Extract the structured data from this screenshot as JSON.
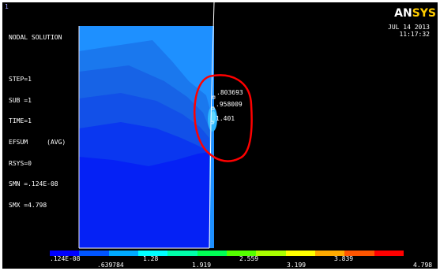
{
  "window_number": "1",
  "logo": {
    "main": "AN",
    "accent": "SYS"
  },
  "info_lines": [
    "NODAL SOLUTION",
    "",
    "STEP=1",
    "SUB =1",
    "TIME=1",
    "EFSUM     (AVG)",
    "RSYS=0",
    "SMN =.124E-08",
    "SMX =4.798"
  ],
  "date": "JUL 14 2013",
  "time": "11:17:32",
  "probe_values": [
    ".803693",
    ".958009",
    "1.401"
  ],
  "legend": {
    "colors": [
      "#0000ff",
      "#0055ff",
      "#00aaff",
      "#00ffff",
      "#00ffaa",
      "#00ff55",
      "#55ff00",
      "#aaff00",
      "#ffff00",
      "#ffaa00",
      "#ff5500",
      "#ff0000"
    ],
    "top_labels": [
      ".124E-08",
      "1.28",
      "2.559",
      "3.839"
    ],
    "bottom_labels": [
      ".639784",
      "1.919",
      "3.199",
      "4.798"
    ]
  },
  "contour_colors": {
    "c1": "#1e90ff",
    "c2": "#1a78ee",
    "c3": "#1763e6",
    "c4": "#1250e8",
    "c5": "#0a37f0",
    "c6": "#0521f5",
    "hot1": "#2cb6ff",
    "hot2": "#5fd9ff",
    "annotation": "#ff0000"
  }
}
